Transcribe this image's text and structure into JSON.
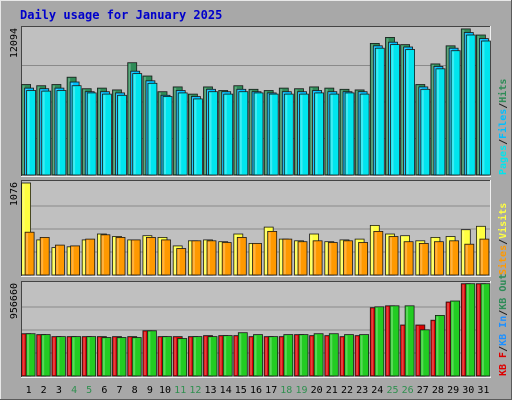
{
  "title": "Daily usage for January 2025",
  "colors": {
    "frame": "#a8a8a8",
    "plot_bg": "#c0c0c0",
    "title": "#0000cc",
    "day_weekday": "#000000",
    "day_weekend": "#2f8f4f",
    "hits": "#2e8b57",
    "files": "#00bfff",
    "pages": "#00e5ee",
    "visits": "#ffff40",
    "sites": "#ff9900",
    "kbout": "#2e8b57",
    "kbin": "#1e90ff",
    "kbf": "#dd0000",
    "kbF": "#22cc22"
  },
  "chart_data": [
    {
      "type": "bar",
      "panel": "hits-files-pages",
      "max_label": "12094",
      "ylim": [
        0,
        12094
      ],
      "legend": [
        {
          "text": "Hits",
          "key": "hits"
        },
        {
          "text": "/",
          "key": "sep"
        },
        {
          "text": "Files",
          "key": "files"
        },
        {
          "text": "/",
          "key": "sep"
        },
        {
          "text": "Pages",
          "key": "pages"
        }
      ],
      "categories": [
        "1",
        "2",
        "3",
        "4",
        "5",
        "6",
        "7",
        "8",
        "9",
        "10",
        "11",
        "12",
        "13",
        "14",
        "15",
        "16",
        "17",
        "18",
        "19",
        "20",
        "21",
        "22",
        "23",
        "24",
        "25",
        "26",
        "27",
        "28",
        "29",
        "30",
        "31"
      ],
      "series": [
        {
          "name": "Hits",
          "color_key": "hits",
          "values": [
            7500,
            7400,
            7500,
            8100,
            7150,
            7200,
            7050,
            9300,
            8200,
            6900,
            7300,
            6700,
            7300,
            7000,
            7400,
            7100,
            7000,
            7200,
            7150,
            7300,
            7200,
            7100,
            7050,
            10900,
            11400,
            10800,
            7500,
            9200,
            10700,
            12100,
            11600
          ]
        },
        {
          "name": "Files",
          "color_key": "files",
          "values": [
            7200,
            7150,
            7200,
            7700,
            6900,
            6900,
            6800,
            8600,
            7800,
            6600,
            7000,
            6500,
            7100,
            6900,
            7100,
            6900,
            6800,
            6900,
            6900,
            7000,
            6900,
            6900,
            6900,
            10700,
            11000,
            10600,
            7300,
            9000,
            10500,
            11800,
            11300
          ]
        },
        {
          "name": "Pages",
          "color_key": "pages",
          "values": [
            7000,
            6950,
            7000,
            7400,
            6800,
            6700,
            6600,
            8400,
            7600,
            6500,
            6800,
            6300,
            6900,
            6700,
            6900,
            6800,
            6700,
            6700,
            6700,
            6800,
            6700,
            6800,
            6700,
            10500,
            10800,
            10400,
            7100,
            8800,
            10300,
            11600,
            11100
          ]
        }
      ]
    },
    {
      "type": "bar",
      "panel": "visits-sites",
      "max_label": "1076",
      "ylim": [
        0,
        1076
      ],
      "legend": [
        {
          "text": "Visits",
          "key": "visits"
        },
        {
          "text": "/",
          "key": "sep"
        },
        {
          "text": "Sites",
          "key": "sites"
        }
      ],
      "categories": [
        "1",
        "2",
        "3",
        "4",
        "5",
        "6",
        "7",
        "8",
        "9",
        "10",
        "11",
        "12",
        "13",
        "14",
        "15",
        "16",
        "17",
        "18",
        "19",
        "20",
        "21",
        "22",
        "23",
        "24",
        "25",
        "26",
        "27",
        "28",
        "29",
        "30",
        "31"
      ],
      "series": [
        {
          "name": "Visits",
          "color_key": "visits",
          "values": [
            1076,
            410,
            320,
            330,
            410,
            480,
            450,
            410,
            460,
            440,
            340,
            400,
            410,
            390,
            480,
            370,
            560,
            420,
            400,
            480,
            390,
            410,
            420,
            580,
            480,
            460,
            400,
            440,
            450,
            530,
            570
          ]
        },
        {
          "name": "Sites",
          "color_key": "sites",
          "values": [
            500,
            440,
            350,
            340,
            420,
            470,
            440,
            410,
            440,
            410,
            310,
            400,
            400,
            380,
            440,
            370,
            510,
            420,
            390,
            400,
            380,
            400,
            380,
            510,
            450,
            390,
            370,
            390,
            400,
            360,
            420
          ]
        }
      ]
    },
    {
      "type": "bar",
      "panel": "kbf-kbin-kbout",
      "max_label": "956660",
      "ylim": [
        0,
        956660
      ],
      "legend": [
        {
          "text": "KB Out",
          "key": "kbout"
        },
        {
          "text": "/",
          "key": "sep"
        },
        {
          "text": "KB In",
          "key": "kbin"
        },
        {
          "text": "/",
          "key": "sep"
        },
        {
          "text": "KB F",
          "key": "kbf"
        }
      ],
      "categories": [
        "1",
        "2",
        "3",
        "4",
        "5",
        "6",
        "7",
        "8",
        "9",
        "10",
        "11",
        "12",
        "13",
        "14",
        "15",
        "16",
        "17",
        "18",
        "19",
        "20",
        "21",
        "22",
        "23",
        "24",
        "25",
        "26",
        "27",
        "28",
        "29",
        "30",
        "31"
      ],
      "series": [
        {
          "name": "KB F",
          "color_key": "kbf",
          "values": [
            440000,
            430000,
            410000,
            410000,
            410000,
            410000,
            410000,
            410000,
            470000,
            410000,
            410000,
            410000,
            420000,
            420000,
            420000,
            410000,
            410000,
            410000,
            430000,
            420000,
            420000,
            410000,
            420000,
            710000,
            730000,
            530000,
            530000,
            580000,
            770000,
            960000,
            960000
          ]
        },
        {
          "name": "KB In",
          "color_key": "kbF",
          "values": [
            440000,
            430000,
            410000,
            410000,
            410000,
            400000,
            400000,
            400000,
            470000,
            410000,
            390000,
            410000,
            410000,
            420000,
            450000,
            430000,
            410000,
            430000,
            430000,
            440000,
            440000,
            430000,
            430000,
            720000,
            730000,
            730000,
            480000,
            630000,
            780000,
            960000,
            960000
          ]
        }
      ]
    }
  ],
  "day_axis": {
    "labels": [
      "1",
      "2",
      "3",
      "4",
      "5",
      "6",
      "7",
      "8",
      "9",
      "10",
      "11",
      "12",
      "13",
      "14",
      "15",
      "16",
      "17",
      "18",
      "19",
      "20",
      "21",
      "22",
      "23",
      "24",
      "25",
      "26",
      "27",
      "28",
      "29",
      "30",
      "31"
    ],
    "weekend": [
      "4",
      "5",
      "11",
      "12",
      "18",
      "19",
      "25",
      "26"
    ]
  }
}
